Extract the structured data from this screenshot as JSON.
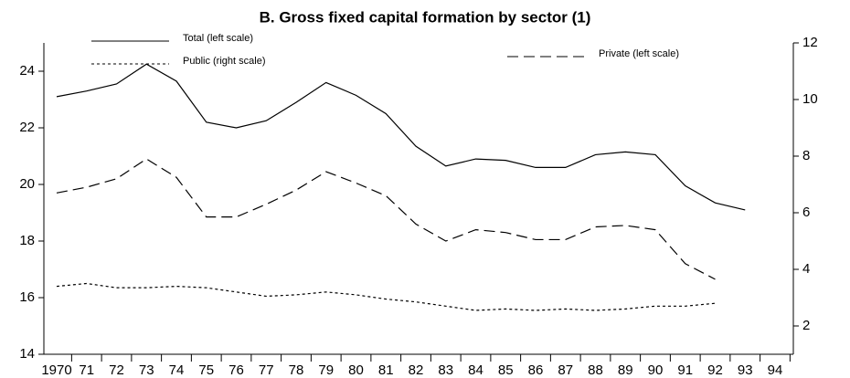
{
  "chart_data": {
    "type": "line",
    "title": "B. Gross fixed capital formation by sector (1)",
    "categories": [
      "1970",
      "71",
      "72",
      "73",
      "74",
      "75",
      "76",
      "77",
      "78",
      "79",
      "80",
      "81",
      "82",
      "83",
      "84",
      "85",
      "86",
      "87",
      "88",
      "89",
      "90",
      "91",
      "92",
      "93",
      "94"
    ],
    "series": [
      {
        "name": "Total (left scale)",
        "color": "#000000",
        "dash": "solid",
        "axis": "y",
        "values": [
          23.1,
          23.3,
          23.55,
          24.25,
          23.65,
          22.2,
          22.0,
          22.25,
          22.9,
          23.6,
          23.15,
          22.5,
          21.35,
          20.65,
          20.9,
          20.85,
          20.6,
          20.6,
          21.05,
          21.15,
          21.05,
          19.95,
          19.35,
          19.1,
          null
        ]
      },
      {
        "name": "Public (right scale)",
        "color": "#000000",
        "dash": "dotted",
        "axis": "y2",
        "values": [
          3.4,
          3.5,
          3.35,
          3.35,
          3.4,
          3.35,
          3.2,
          3.05,
          3.1,
          3.2,
          3.1,
          2.95,
          2.85,
          2.7,
          2.55,
          2.6,
          2.55,
          2.6,
          2.55,
          2.6,
          2.7,
          2.7,
          2.8,
          null,
          null
        ]
      },
      {
        "name": "Private (left scale)",
        "color": "#000000",
        "dash": "dashed",
        "axis": "y",
        "values": [
          19.7,
          19.9,
          20.2,
          20.9,
          20.25,
          18.85,
          18.85,
          19.3,
          19.8,
          20.45,
          20.05,
          19.6,
          18.6,
          18.0,
          18.4,
          18.3,
          18.05,
          18.05,
          18.5,
          18.55,
          18.4,
          17.2,
          16.65,
          null,
          null
        ]
      }
    ],
    "ylim": [
      14,
      25
    ],
    "yticks": [
      14,
      16,
      18,
      20,
      22,
      24
    ],
    "y2lim": [
      1,
      12
    ],
    "y2ticks": [
      2,
      4,
      6,
      8,
      10,
      12
    ]
  }
}
